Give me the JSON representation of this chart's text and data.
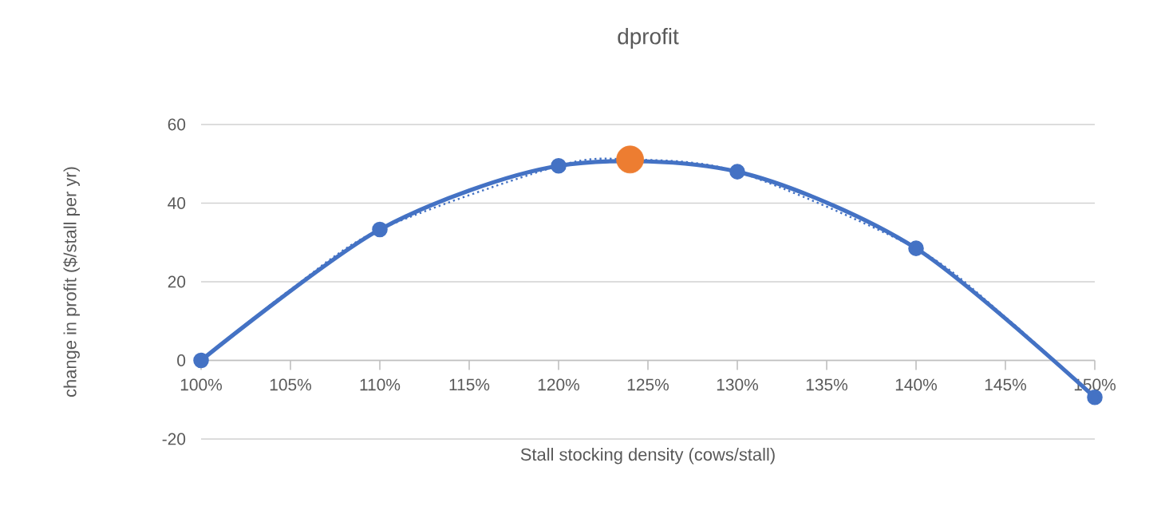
{
  "chart_data": {
    "type": "line",
    "title": "dprofit",
    "xlabel": "Stall stocking density (cows/stall)",
    "ylabel": "change in profit ($/stall per yr)",
    "xlim": [
      100,
      150
    ],
    "xticks": [
      {
        "value": 100,
        "label": "100%"
      },
      {
        "value": 105,
        "label": "105%"
      },
      {
        "value": 110,
        "label": "110%"
      },
      {
        "value": 115,
        "label": "115%"
      },
      {
        "value": 120,
        "label": "120%"
      },
      {
        "value": 125,
        "label": "125%"
      },
      {
        "value": 130,
        "label": "130%"
      },
      {
        "value": 135,
        "label": "135%"
      },
      {
        "value": 140,
        "label": "140%"
      },
      {
        "value": 145,
        "label": "145%"
      },
      {
        "value": 150,
        "label": "150%"
      }
    ],
    "ylim": [
      -20,
      60
    ],
    "yticks": [
      -20,
      0,
      20,
      40,
      60
    ],
    "grid": "y",
    "marker": "circle",
    "series": [
      {
        "color": "#4472c4",
        "x": [
          100,
          110,
          120,
          130,
          140,
          150
        ],
        "values": [
          0,
          33.3,
          49.5,
          48.0,
          28.5,
          -9.4
        ]
      },
      {
        "type": "scatter",
        "color": "#ed7d31",
        "x": [
          124
        ],
        "values": [
          51.1
        ]
      },
      {
        "type": "line",
        "marker": "none",
        "line_style": "dotted",
        "color": "#4472c4",
        "x": [
          100,
          105,
          110,
          120,
          124,
          130,
          140,
          145,
          150
        ],
        "values": [
          0,
          18,
          33.3,
          49.5,
          51.1,
          48.0,
          28.5,
          11,
          -9.4
        ]
      }
    ]
  }
}
